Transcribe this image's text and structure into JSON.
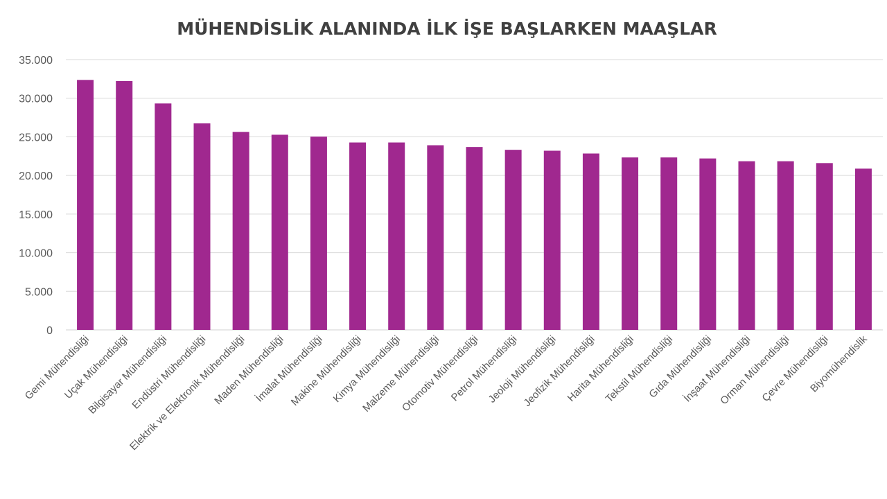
{
  "chart_data": {
    "type": "bar",
    "title": "MÜHENDİSLİK ALANINDA İLK İŞE BAŞLARKEN MAAŞLAR",
    "xlabel": "",
    "ylabel": "",
    "ylim": [
      0,
      35000
    ],
    "yticks": [
      0,
      5000,
      10000,
      15000,
      20000,
      25000,
      30000,
      35000
    ],
    "ytick_labels": [
      "0",
      "5.000",
      "10.000",
      "15.000",
      "20.000",
      "25.000",
      "30.000",
      "35.000"
    ],
    "grid": true,
    "legend": "none",
    "bar_color": "#A0288F",
    "categories": [
      "Gemi Mühendisliği",
      "Uçak Mühendisliği",
      "Bilgisayar Mühendisliği",
      "Endüstri Mühendisliği",
      "Elektrik ve Elektronik Mühendisliği",
      "Maden Mühendisliği",
      "İmalat Mühendisliği",
      "Makine Mühendisliği",
      "Kimya Mühendisliği",
      "Malzeme Mühendisliği",
      "Otomotiv Mühendisliği",
      "Petrol Mühendisliği",
      "Jeoloji Mühendisliği",
      "Jeofizik Mühendisliği",
      "Harita Mühendisliği",
      "Tekstil Mühendisliği",
      "Gıda Mühendisliği",
      "İnşaat Mühendisliği",
      "Orman Mühendisliği",
      "Çevre Mühendisliği",
      "Biyomühendislik"
    ],
    "values": [
      32370,
      32220,
      29320,
      26740,
      25640,
      25270,
      25030,
      24270,
      24270,
      23910,
      23680,
      23320,
      23200,
      22840,
      22330,
      22330,
      22200,
      21840,
      21840,
      21600,
      20880
    ]
  }
}
